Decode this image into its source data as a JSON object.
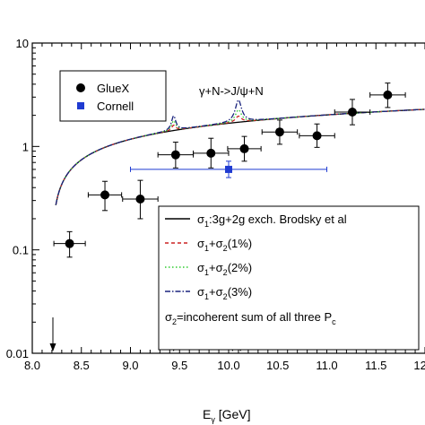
{
  "chart_data": {
    "type": "scatter",
    "xlabel": "E",
    "xlabel_sub": "γ",
    "xlabel_unit": " [GeV]",
    "ylabel": "",
    "xlim": [
      8.0,
      12.0
    ],
    "ylim": [
      0.01,
      10
    ],
    "yscale": "log",
    "x_ticks": [
      8.0,
      8.5,
      9.0,
      9.5,
      10.0,
      10.5,
      11.0,
      11.5,
      12.0
    ],
    "x_tick_labels": [
      "8.0",
      "8.5",
      "9.0",
      "9.5",
      "10.0",
      "10.5",
      "11.0",
      "11.5",
      "12.0"
    ],
    "y_ticks": [
      0.01,
      0.1,
      1,
      10
    ],
    "y_tick_labels": [
      "0.01",
      "0.1",
      "1",
      "10"
    ],
    "annotation": "γ+N->J/ψ+N",
    "arrows_x": [
      8.21,
      9.44,
      10.04,
      10.12
    ],
    "series_points": [
      {
        "name": "GlueX",
        "marker": "circle",
        "color": "#000000",
        "points": [
          {
            "x": 8.38,
            "y": 0.115,
            "xerr": 0.16,
            "ylo": 0.085,
            "yhi": 0.15
          },
          {
            "x": 8.74,
            "y": 0.34,
            "xerr": 0.17,
            "ylo": 0.24,
            "yhi": 0.46
          },
          {
            "x": 9.1,
            "y": 0.31,
            "xerr": 0.18,
            "ylo": 0.2,
            "yhi": 0.47
          },
          {
            "x": 9.46,
            "y": 0.83,
            "xerr": 0.18,
            "ylo": 0.62,
            "yhi": 1.1
          },
          {
            "x": 9.82,
            "y": 0.86,
            "xerr": 0.18,
            "ylo": 0.62,
            "yhi": 1.2
          },
          {
            "x": 10.16,
            "y": 0.95,
            "xerr": 0.17,
            "ylo": 0.72,
            "yhi": 1.25
          },
          {
            "x": 10.52,
            "y": 1.38,
            "xerr": 0.18,
            "ylo": 1.05,
            "yhi": 1.8
          },
          {
            "x": 10.9,
            "y": 1.27,
            "xerr": 0.18,
            "ylo": 0.98,
            "yhi": 1.65
          },
          {
            "x": 11.26,
            "y": 2.15,
            "xerr": 0.18,
            "ylo": 1.62,
            "yhi": 2.85
          },
          {
            "x": 11.62,
            "y": 3.15,
            "xerr": 0.18,
            "ylo": 2.38,
            "yhi": 4.1
          }
        ]
      },
      {
        "name": "Cornell",
        "marker": "square",
        "color": "#1f3bd1",
        "points": [
          {
            "x": 10.0,
            "y": 0.6,
            "xlo": 9.0,
            "xhi": 11.0,
            "ylo": 0.5,
            "yhi": 0.72
          }
        ]
      }
    ],
    "series_lines": [
      {
        "name": "σ1:3g+2g exch. Brodsky et al",
        "style": "solid",
        "color": "#000000",
        "peak1": 0,
        "peak2": 0
      },
      {
        "name": "σ1+σ2(1%)",
        "style": "dashed",
        "color": "#cc2222",
        "peak1": 0.18,
        "peak2": 0.25
      },
      {
        "name": "σ1+σ2(2%)",
        "style": "dotted",
        "color": "#2ecc2e",
        "peak1": 0.35,
        "peak2": 0.55
      },
      {
        "name": "σ1+σ2(3%)",
        "style": "dashdot",
        "color": "#1a237e",
        "peak1": 0.55,
        "peak2": 1.1
      }
    ],
    "legend_points": {
      "items": [
        {
          "label": "GlueX"
        },
        {
          "label": "Cornell"
        }
      ],
      "position": "top-left"
    },
    "legend_lines": {
      "items": [
        {
          "main": "σ",
          "sub": "1",
          "rest": ":3g+2g exch. Brodsky et al"
        },
        {
          "main": "σ",
          "sub": "1",
          "rest": "+σ",
          "sub2": "2",
          "rest2": "(1%)"
        },
        {
          "main": "σ",
          "sub": "1",
          "rest": "+σ",
          "sub2": "2",
          "rest2": "(2%)"
        },
        {
          "main": "σ",
          "sub": "1",
          "rest": "+σ",
          "sub2": "2",
          "rest2": "(3%)"
        }
      ],
      "note_main": "σ",
      "note_sub": "2",
      "note_rest": "=incoherent sum of all three P",
      "note_sub2": "c",
      "position": "bottom-right"
    }
  }
}
